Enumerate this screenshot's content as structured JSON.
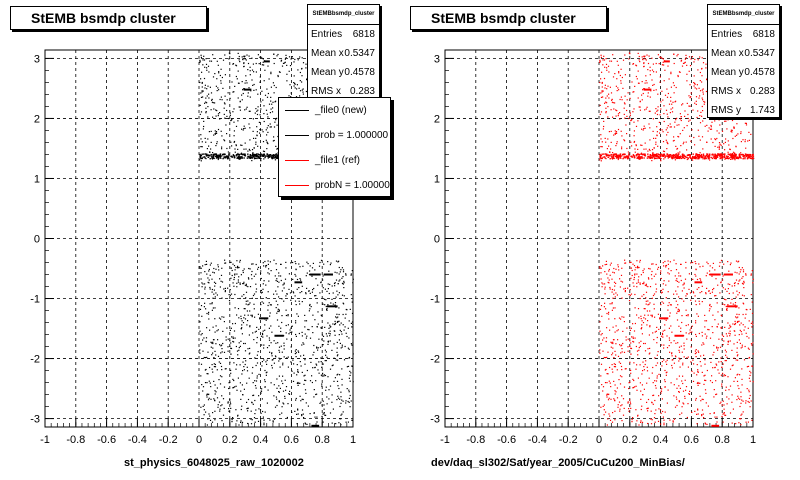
{
  "chart_data": [
    {
      "type": "scatter",
      "title": "StEMB bsmdp cluster",
      "xlabel": "st_physics_6048025_raw_1020002",
      "ylabel": "",
      "xlim": [
        -1,
        1
      ],
      "ylim": [
        -3.14,
        3.14
      ],
      "x_ticks": [
        "-1",
        "-0.8",
        "-0.6",
        "-0.4",
        "-0.2",
        "0",
        "0.2",
        "0.4",
        "0.6",
        "0.8",
        "1"
      ],
      "y_ticks": [
        "-3",
        "-2",
        "-1",
        "0",
        "1",
        "2",
        "3"
      ],
      "grid": true,
      "marker_color": "#000000",
      "populated_x_range": [
        0,
        1
      ],
      "populated_y_bands": [
        [
          -3.1,
          -0.35
        ],
        [
          1.3,
          3.1
        ]
      ],
      "dense_band_y": 1.38,
      "hot_segments": [
        {
          "x": [
            0.42,
            0.46
          ],
          "y": 2.95
        },
        {
          "x": [
            0.29,
            0.34
          ],
          "y": 2.48
        },
        {
          "x": [
            0.62,
            0.67
          ],
          "y": -0.73
        },
        {
          "x": [
            0.72,
            0.79
          ],
          "y": -0.6
        },
        {
          "x": [
            0.81,
            0.87
          ],
          "y": -0.6
        },
        {
          "x": [
            0.83,
            0.9
          ],
          "y": -1.13
        },
        {
          "x": [
            0.39,
            0.45
          ],
          "y": -1.33
        },
        {
          "x": [
            0.49,
            0.55
          ],
          "y": -1.62
        },
        {
          "x": [
            0.73,
            0.78
          ],
          "y": -3.12
        }
      ],
      "stats": {
        "header": "StEMBbsmdp_cluster",
        "rows": [
          {
            "label": "Entries",
            "value": "6818"
          },
          {
            "label": "Mean x",
            "value": "0.5347"
          },
          {
            "label": "Mean y",
            "value": "0.4578"
          },
          {
            "label": "RMS x",
            "value": "0.283"
          }
        ]
      },
      "legend": [
        {
          "label": "_file0 (new)",
          "color": "#000000"
        },
        {
          "label": "prob = 1.000000",
          "color": "#000000"
        },
        {
          "label": "_file1 (ref)",
          "color": "#ff0000"
        },
        {
          "label": "probN = 1.000000",
          "color": "#ff0000"
        }
      ]
    },
    {
      "type": "scatter",
      "title": "StEMB bsmdp cluster",
      "xlabel": "dev/daq_sl302/Sat/year_2005/CuCu200_MinBias/",
      "ylabel": "",
      "xlim": [
        -1,
        1
      ],
      "ylim": [
        -3.14,
        3.14
      ],
      "x_ticks": [
        "-1",
        "-0.8",
        "-0.6",
        "-0.4",
        "-0.2",
        "0",
        "0.2",
        "0.4",
        "0.6",
        "0.8",
        "1"
      ],
      "y_ticks": [
        "-3",
        "-2",
        "-1",
        "0",
        "1",
        "2",
        "3"
      ],
      "grid": true,
      "marker_color": "#ff0000",
      "populated_x_range": [
        0,
        1
      ],
      "populated_y_bands": [
        [
          -3.1,
          -0.35
        ],
        [
          1.3,
          3.1
        ]
      ],
      "dense_band_y": 1.38,
      "hot_segments": [
        {
          "x": [
            0.42,
            0.46
          ],
          "y": 2.95
        },
        {
          "x": [
            0.29,
            0.34
          ],
          "y": 2.48
        },
        {
          "x": [
            0.62,
            0.67
          ],
          "y": -0.73
        },
        {
          "x": [
            0.72,
            0.79
          ],
          "y": -0.6
        },
        {
          "x": [
            0.81,
            0.87
          ],
          "y": -0.6
        },
        {
          "x": [
            0.83,
            0.9
          ],
          "y": -1.13
        },
        {
          "x": [
            0.39,
            0.45
          ],
          "y": -1.33
        },
        {
          "x": [
            0.49,
            0.55
          ],
          "y": -1.62
        },
        {
          "x": [
            0.73,
            0.78
          ],
          "y": -3.12
        }
      ],
      "stats": {
        "header": "StEMBbsmdp_cluster",
        "rows": [
          {
            "label": "Entries",
            "value": "6818"
          },
          {
            "label": "Mean x",
            "value": "0.5347"
          },
          {
            "label": "Mean y",
            "value": "0.4578"
          },
          {
            "label": "RMS x",
            "value": "0.283"
          },
          {
            "label": "RMS y",
            "value": "1.743"
          }
        ]
      }
    }
  ]
}
